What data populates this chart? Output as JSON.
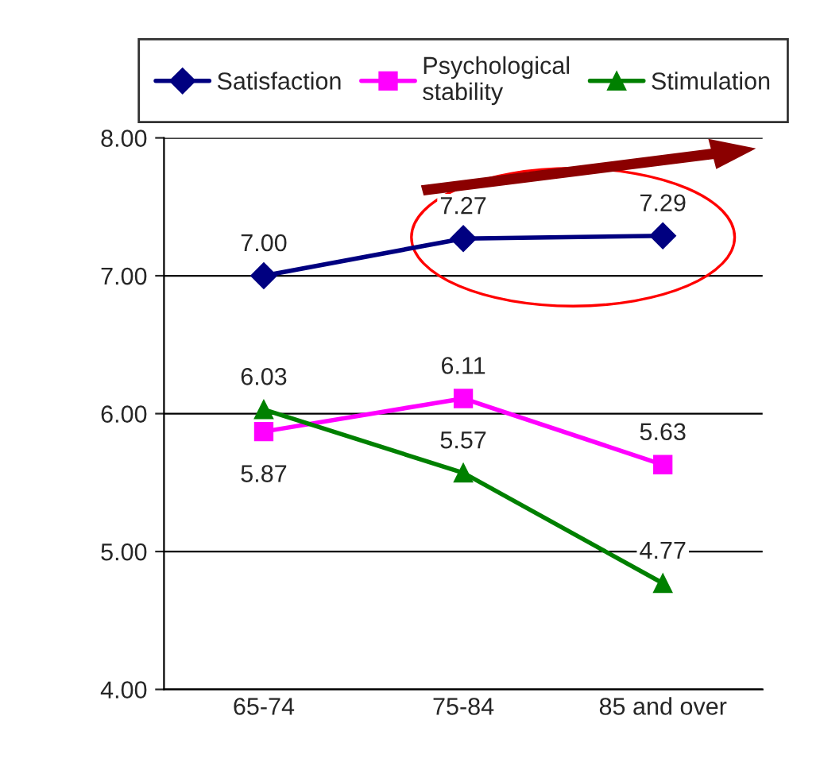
{
  "chart_data": {
    "type": "line",
    "categories": [
      "65-74",
      "75-84",
      "85 and over"
    ],
    "series": [
      {
        "name": "Satisfaction",
        "color": "#000080",
        "marker": "diamond",
        "values": [
          7.0,
          7.27,
          7.29
        ],
        "value_labels": [
          "7.00",
          "7.27",
          "7.29"
        ]
      },
      {
        "name": "Psychological\nstability",
        "color": "#ff00ff",
        "marker": "square",
        "values": [
          5.87,
          6.11,
          5.63
        ],
        "value_labels": [
          "5.87",
          "6.11",
          "5.63"
        ]
      },
      {
        "name": "Stimulation",
        "color": "#008000",
        "marker": "triangle",
        "values": [
          6.03,
          5.57,
          4.77
        ],
        "value_labels": [
          "6.03",
          "5.57",
          "4.77"
        ]
      }
    ],
    "ylim": [
      4,
      8
    ],
    "yticks": [
      {
        "value": 4,
        "label": "4.00"
      },
      {
        "value": 5,
        "label": "5.00"
      },
      {
        "value": 6,
        "label": "6.00"
      },
      {
        "value": 7,
        "label": "7.00"
      },
      {
        "value": 8,
        "label": "8.00"
      }
    ],
    "grid": "y",
    "legend": "top",
    "line_style": "solid"
  }
}
